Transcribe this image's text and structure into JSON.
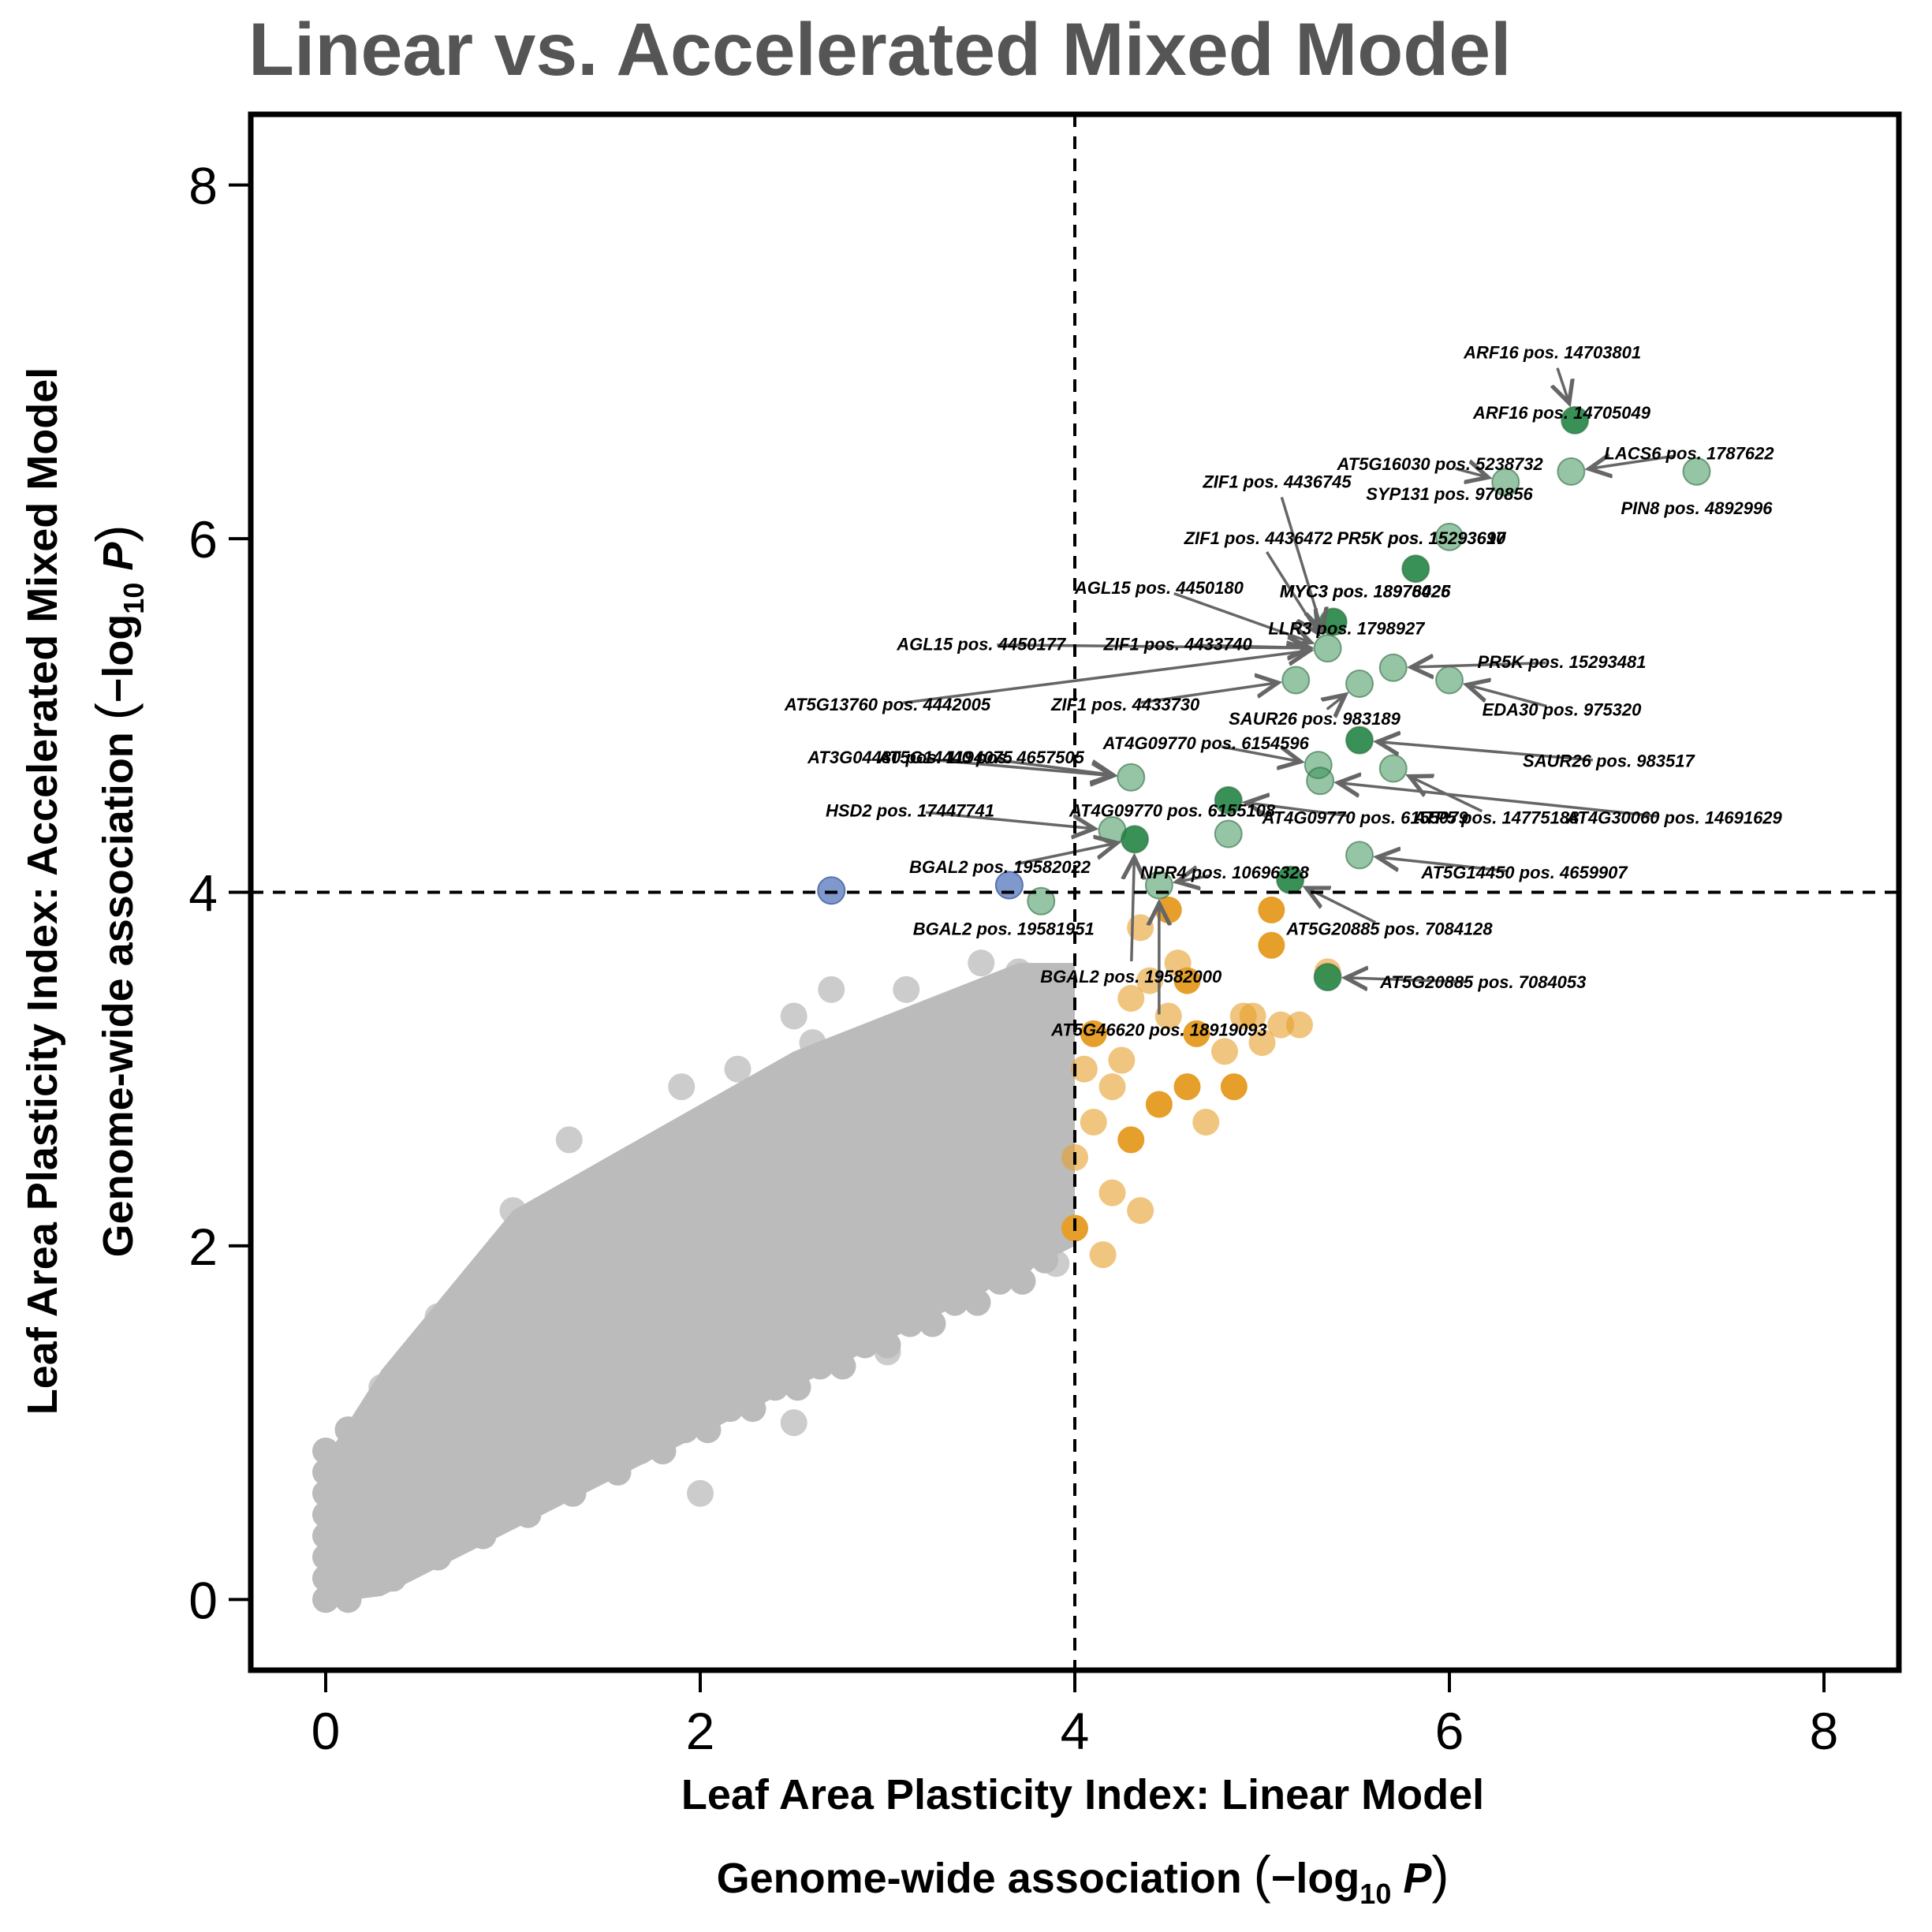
{
  "chart_data": {
    "type": "scatter",
    "title": "Linear vs. Accelerated Mixed Model",
    "xlabel": "Leaf Area Plasticity Index: Linear Model",
    "xlabel2": "Genome-wide association",
    "ylabel": "Leaf Area Plasticity Index: Accelerated Mixed Model",
    "ylabel2": "Genome-wide association",
    "log_label": "−log",
    "log_base": "10",
    "log_var": "P",
    "xlim": [
      -0.4,
      8.4
    ],
    "ylim": [
      -0.4,
      8.4
    ],
    "xticks": [
      "0",
      "2",
      "4",
      "6",
      "8"
    ],
    "yticks": [
      "0",
      "2",
      "4",
      "6",
      "8"
    ],
    "thresholds": {
      "x": 4,
      "y": 4
    },
    "grid": false,
    "colors": {
      "background": "#BBBBBB",
      "x_only": "#E69F2A",
      "y_only": "#7F98CE",
      "both": "#2E8B4E",
      "title": "#555555"
    },
    "background_cloud": [
      [
        0.05,
        0.05
      ],
      [
        0.3,
        0.2
      ],
      [
        0.5,
        0.35
      ],
      [
        0.8,
        0.5
      ],
      [
        1.0,
        0.8
      ],
      [
        1.2,
        0.9
      ],
      [
        1.5,
        1.1
      ],
      [
        1.8,
        1.4
      ],
      [
        2.0,
        1.6
      ],
      [
        2.2,
        1.9
      ],
      [
        2.4,
        2.1
      ],
      [
        2.6,
        2.3
      ],
      [
        2.8,
        2.5
      ],
      [
        3.0,
        2.6
      ],
      [
        3.2,
        2.5
      ],
      [
        3.4,
        2.8
      ],
      [
        3.6,
        2.9
      ],
      [
        3.8,
        2.7
      ],
      [
        0.3,
        1.2
      ],
      [
        0.6,
        1.6
      ],
      [
        1.0,
        2.2
      ],
      [
        1.3,
        2.6
      ],
      [
        1.6,
        2.4
      ],
      [
        1.9,
        2.9
      ],
      [
        2.2,
        3.0
      ],
      [
        2.5,
        3.3
      ],
      [
        2.7,
        3.45
      ],
      [
        3.1,
        3.45
      ],
      [
        3.5,
        3.6
      ],
      [
        2.0,
        0.6
      ],
      [
        2.5,
        1.0
      ],
      [
        3.0,
        1.4
      ],
      [
        3.5,
        1.9
      ],
      [
        3.9,
        1.9
      ],
      [
        3.7,
        3.55
      ],
      [
        2.6,
        3.15
      ],
      [
        1.3,
        2.1
      ],
      [
        0.9,
        1.7
      ],
      [
        3.3,
        3.2
      ],
      [
        2.9,
        2.95
      ]
    ],
    "x_only_points": [
      [
        4.0,
        2.1
      ],
      [
        4.0,
        2.5
      ],
      [
        4.05,
        3.0
      ],
      [
        4.1,
        3.2
      ],
      [
        4.2,
        2.3
      ],
      [
        4.2,
        2.9
      ],
      [
        4.3,
        2.6
      ],
      [
        4.3,
        3.4
      ],
      [
        4.35,
        3.8
      ],
      [
        4.45,
        2.8
      ],
      [
        4.5,
        3.3
      ],
      [
        4.55,
        3.6
      ],
      [
        4.6,
        2.9
      ],
      [
        4.7,
        2.7
      ],
      [
        4.8,
        3.1
      ],
      [
        4.85,
        2.9
      ],
      [
        4.95,
        3.3
      ],
      [
        5.0,
        3.15
      ],
      [
        5.05,
        3.7
      ],
      [
        5.1,
        3.25
      ],
      [
        5.2,
        3.25
      ],
      [
        5.05,
        3.9
      ],
      [
        4.15,
        1.95
      ],
      [
        4.35,
        2.2
      ],
      [
        4.5,
        3.9
      ],
      [
        4.4,
        3.5
      ],
      [
        4.25,
        3.05
      ],
      [
        4.65,
        3.2
      ],
      [
        5.35,
        3.55
      ],
      [
        4.1,
        2.7
      ],
      [
        4.6,
        3.5
      ],
      [
        4.9,
        3.3
      ]
    ],
    "y_only_points": [
      [
        2.7,
        4.01
      ],
      [
        3.65,
        4.04
      ]
    ],
    "labeled": [
      {
        "x": 6.67,
        "y": 6.67,
        "label": "ARF16 pos. 14703801",
        "lx": 6.55,
        "ly": 7.05,
        "dark": true
      },
      {
        "x": 6.67,
        "y": 6.67,
        "label": "ARF16 pos. 14705049",
        "lx": 6.6,
        "ly": 6.71,
        "dark": true
      },
      {
        "x": 7.32,
        "y": 6.38,
        "label": "PIN8 pos. 4892996",
        "lx": 7.32,
        "ly": 6.17,
        "dark": false
      },
      {
        "x": 6.65,
        "y": 6.38,
        "label": "LACS6 pos. 1787622",
        "lx": 7.28,
        "ly": 6.48,
        "dark": false
      },
      {
        "x": 6.3,
        "y": 6.32,
        "label": "AT5G16030 pos. 5238732",
        "lx": 5.95,
        "ly": 6.42,
        "dark": false
      },
      {
        "x": 6.0,
        "y": 6.01,
        "label": "SYP131 pos. 970856",
        "lx": 6.0,
        "ly": 6.25,
        "dark": false
      },
      {
        "x": 5.82,
        "y": 5.83,
        "label": "PR5K pos. 15293697",
        "lx": 5.85,
        "ly": 6.0,
        "dark": true
      },
      {
        "x": 5.82,
        "y": 5.83,
        "label": "PR5K pos. 15293610",
        "lx": 5.85,
        "ly": 6.0,
        "dark": true
      },
      {
        "x": 5.38,
        "y": 5.53,
        "label": "MYC3 pos. 18978425",
        "lx": 5.55,
        "ly": 5.7,
        "dark": true
      },
      {
        "x": 5.38,
        "y": 5.53,
        "label": "MYC3 pos. 18976026",
        "lx": 5.55,
        "ly": 5.7,
        "dark": true
      },
      {
        "x": 5.35,
        "y": 5.38,
        "label": "LLR3 pos. 1798927",
        "lx": 5.45,
        "ly": 5.49,
        "dark": false
      },
      {
        "x": 5.35,
        "y": 5.38,
        "label": "ZIF1 pos. 4436745",
        "lx": 5.08,
        "ly": 6.32,
        "dark": true
      },
      {
        "x": 5.35,
        "y": 5.38,
        "label": "ZIF1 pos. 4436472",
        "lx": 4.98,
        "ly": 6.0,
        "dark": true
      },
      {
        "x": 5.35,
        "y": 5.38,
        "label": "AGL15 pos. 4450180",
        "lx": 4.45,
        "ly": 5.72,
        "dark": true
      },
      {
        "x": 5.35,
        "y": 5.38,
        "label": "AGL15 pos. 4450177",
        "lx": 3.5,
        "ly": 5.4,
        "dark": true
      },
      {
        "x": 5.35,
        "y": 5.38,
        "label": "ZIF1 pos. 4433740",
        "lx": 4.55,
        "ly": 5.4,
        "dark": true
      },
      {
        "x": 5.35,
        "y": 5.38,
        "label": "AT5G13760 pos. 4442005",
        "lx": 3.0,
        "ly": 5.06,
        "dark": true
      },
      {
        "x": 5.18,
        "y": 5.2,
        "label": "ZIF1 pos. 4433730",
        "lx": 4.27,
        "ly": 5.06,
        "dark": false
      },
      {
        "x": 5.7,
        "y": 5.27,
        "label": "PR5K pos. 15293481",
        "lx": 6.6,
        "ly": 5.3,
        "dark": false
      },
      {
        "x": 6.0,
        "y": 5.2,
        "label": "EDA30 pos. 975320",
        "lx": 6.6,
        "ly": 5.03,
        "dark": false
      },
      {
        "x": 5.52,
        "y": 5.18,
        "label": "SAUR26 pos. 983189",
        "lx": 5.28,
        "ly": 4.98,
        "dark": false
      },
      {
        "x": 5.52,
        "y": 4.86,
        "label": "SAUR26 pos. 983517",
        "lx": 6.85,
        "ly": 4.74,
        "dark": true
      },
      {
        "x": 5.3,
        "y": 4.72,
        "label": "AT4G09770 pos. 6154596",
        "lx": 4.7,
        "ly": 4.84,
        "dark": false
      },
      {
        "x": 4.3,
        "y": 4.65,
        "label": "AT3G04480 pos. 1194075",
        "lx": 3.12,
        "ly": 4.76,
        "dark": false
      },
      {
        "x": 4.3,
        "y": 4.65,
        "label": "AT5G14440 pos. 4657505",
        "lx": 3.5,
        "ly": 4.76,
        "dark": false
      },
      {
        "x": 5.31,
        "y": 4.63,
        "label": "AT4G30060 pos. 14691629",
        "lx": 7.2,
        "ly": 4.42,
        "dark": false
      },
      {
        "x": 5.7,
        "y": 4.7,
        "label": "ATP5 pos. 14775188",
        "lx": 6.25,
        "ly": 4.42,
        "dark": false
      },
      {
        "x": 4.82,
        "y": 4.52,
        "label": "AT4G09770 pos. 6155079",
        "lx": 5.55,
        "ly": 4.42,
        "dark": true
      },
      {
        "x": 4.32,
        "y": 4.3,
        "label": "AT4G09770 pos. 6155108",
        "lx": 4.52,
        "ly": 4.46,
        "dark": true
      },
      {
        "x": 4.2,
        "y": 4.35,
        "label": "HSD2 pos. 17447741",
        "lx": 3.12,
        "ly": 4.46,
        "dark": false
      },
      {
        "x": 4.82,
        "y": 4.33,
        "label": "",
        "lx": 0,
        "ly": 0,
        "dark": false
      },
      {
        "x": 5.52,
        "y": 4.21,
        "label": "AT5G14450 pos. 4659907",
        "lx": 6.4,
        "ly": 4.11,
        "dark": false
      },
      {
        "x": 4.32,
        "y": 4.3,
        "label": "BGAL2 pos. 19582022",
        "lx": 3.6,
        "ly": 4.14,
        "dark": true
      },
      {
        "x": 4.45,
        "y": 4.04,
        "label": "NPR4 pos. 10696328",
        "lx": 4.8,
        "ly": 4.11,
        "dark": false
      },
      {
        "x": 5.15,
        "y": 4.07,
        "label": "AT5G20885 pos. 7084128",
        "lx": 5.68,
        "ly": 3.79,
        "dark": true
      },
      {
        "x": 3.82,
        "y": 3.95,
        "label": "BGAL2 pos. 19581951",
        "lx": 3.62,
        "ly": 3.79,
        "dark": false
      },
      {
        "x": 5.35,
        "y": 3.52,
        "label": "AT5G20885 pos. 7084053",
        "lx": 6.18,
        "ly": 3.49,
        "dark": true
      },
      {
        "x": 4.32,
        "y": 4.3,
        "label": "BGAL2 pos. 19582000",
        "lx": 4.3,
        "ly": 3.52,
        "dark": true
      },
      {
        "x": 4.45,
        "y": 4.04,
        "label": "AT5G46620 pos. 18919093",
        "lx": 4.45,
        "ly": 3.22,
        "dark": false
      }
    ]
  }
}
